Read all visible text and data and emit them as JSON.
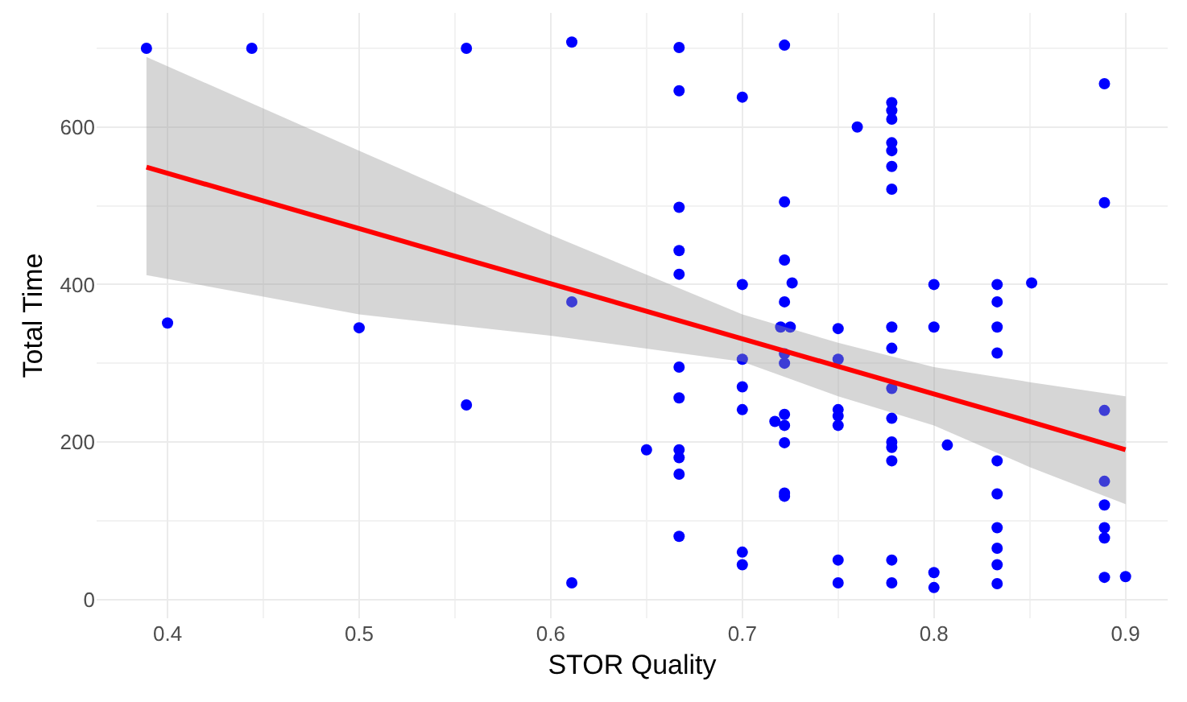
{
  "chart_data": {
    "type": "scatter",
    "xlabel": "STOR Quality",
    "ylabel": "Total Time",
    "xlim": [
      0.363,
      0.922
    ],
    "ylim": [
      -24,
      745
    ],
    "xticks": [
      0.4,
      0.5,
      0.6,
      0.7,
      0.8,
      0.9
    ],
    "yticks": [
      0,
      200,
      400,
      600
    ],
    "grid": true,
    "series": [
      {
        "color": "#0000ff",
        "marker": "circle",
        "x": [
          0.389,
          0.444,
          0.556,
          0.611,
          0.4,
          0.5,
          0.556,
          0.611,
          0.611,
          0.65,
          0.667,
          0.667,
          0.667,
          0.667,
          0.667,
          0.667,
          0.667,
          0.667,
          0.667,
          0.667,
          0.667,
          0.7,
          0.7,
          0.7,
          0.7,
          0.7,
          0.7,
          0.7,
          0.717,
          0.72,
          0.722,
          0.722,
          0.722,
          0.722,
          0.725,
          0.722,
          0.722,
          0.722,
          0.722,
          0.722,
          0.722,
          0.722,
          0.726,
          0.75,
          0.75,
          0.75,
          0.75,
          0.75,
          0.75,
          0.75,
          0.76,
          0.778,
          0.778,
          0.778,
          0.778,
          0.778,
          0.778,
          0.778,
          0.778,
          0.778,
          0.778,
          0.778,
          0.778,
          0.778,
          0.778,
          0.778,
          0.778,
          0.8,
          0.8,
          0.8,
          0.8,
          0.807,
          0.833,
          0.833,
          0.833,
          0.833,
          0.833,
          0.833,
          0.833,
          0.833,
          0.833,
          0.833,
          0.851,
          0.889,
          0.889,
          0.889,
          0.889,
          0.889,
          0.889,
          0.889,
          0.889,
          0.9
        ],
        "values": [
          700,
          700,
          700,
          708,
          351,
          345,
          247,
          378,
          21,
          190,
          701,
          646,
          498,
          443,
          413,
          295,
          256,
          190,
          180,
          159,
          80,
          638,
          400,
          305,
          270,
          241,
          60,
          44,
          226,
          346,
          704,
          505,
          431,
          378,
          346,
          312,
          300,
          235,
          221,
          199,
          135,
          131,
          402,
          344,
          305,
          241,
          233,
          221,
          50,
          21,
          600,
          631,
          621,
          610,
          580,
          570,
          550,
          521,
          346,
          319,
          268,
          230,
          200,
          193,
          176,
          50,
          21,
          400,
          346,
          34,
          15,
          196,
          400,
          378,
          346,
          313,
          176,
          134,
          91,
          65,
          44,
          20,
          402,
          655,
          504,
          240,
          150,
          120,
          91,
          78,
          28,
          29
        ]
      },
      {
        "type": "line",
        "marker": "none",
        "color": "#ff0000",
        "x": [
          0.389,
          0.5,
          0.6,
          0.7,
          0.75,
          0.8,
          0.85,
          0.9
        ],
        "values": [
          549,
          471,
          401,
          331,
          296,
          261,
          226,
          190
        ],
        "lower": [
          412,
          362,
          335,
          302,
          258,
          221,
          168,
          121
        ],
        "upper": [
          689,
          570,
          463,
          362,
          326,
          295,
          276,
          258
        ]
      }
    ]
  }
}
